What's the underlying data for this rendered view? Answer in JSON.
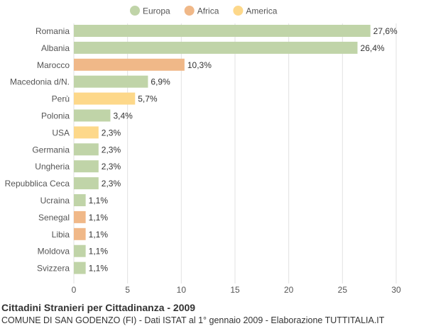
{
  "chart_data": {
    "type": "bar",
    "orientation": "horizontal",
    "legend": [
      {
        "name": "Europa",
        "color": "#c0d4a8"
      },
      {
        "name": "Africa",
        "color": "#f0b888"
      },
      {
        "name": "America",
        "color": "#fdd88a"
      }
    ],
    "legend_position": "top",
    "categories": [
      "Romania",
      "Albania",
      "Marocco",
      "Macedonia d/N.",
      "Perù",
      "Polonia",
      "USA",
      "Germania",
      "Ungheria",
      "Repubblica Ceca",
      "Ucraina",
      "Senegal",
      "Libia",
      "Moldova",
      "Svizzera"
    ],
    "values": [
      27.6,
      26.4,
      10.3,
      6.9,
      5.7,
      3.4,
      2.3,
      2.3,
      2.3,
      2.3,
      1.1,
      1.1,
      1.1,
      1.1,
      1.1
    ],
    "value_labels": [
      "27,6%",
      "26,4%",
      "10,3%",
      "6,9%",
      "5,7%",
      "3,4%",
      "2,3%",
      "2,3%",
      "2,3%",
      "2,3%",
      "1,1%",
      "1,1%",
      "1,1%",
      "1,1%",
      "1,1%"
    ],
    "groups": [
      "Europa",
      "Europa",
      "Africa",
      "Europa",
      "America",
      "Europa",
      "America",
      "Europa",
      "Europa",
      "Europa",
      "Europa",
      "Africa",
      "Africa",
      "Europa",
      "Europa"
    ],
    "xlim": [
      0,
      30
    ],
    "xticks": [
      0,
      5,
      10,
      15,
      20,
      25,
      30
    ],
    "grid": "vertical"
  },
  "footer": {
    "title": "Cittadini Stranieri per Cittadinanza - 2009",
    "subtitle": "COMUNE DI SAN GODENZO (FI) - Dati ISTAT al 1° gennaio 2009 - Elaborazione TUTTITALIA.IT"
  }
}
